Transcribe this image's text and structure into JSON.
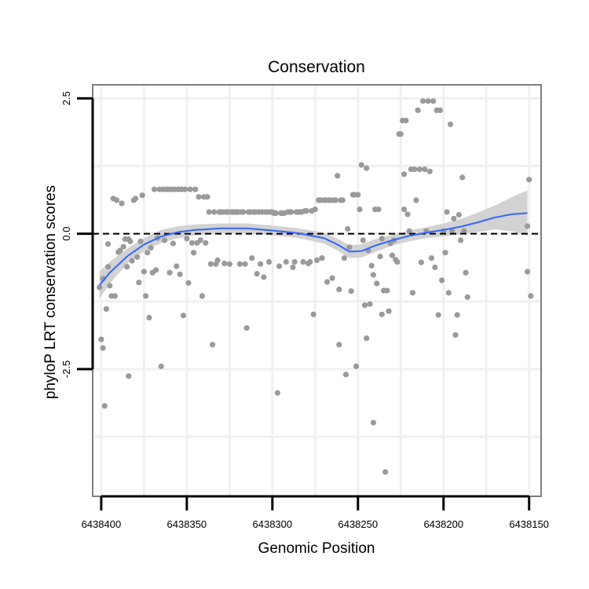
{
  "chart_data": {
    "type": "scatter",
    "title": "Conservation",
    "xlabel": "Genomic Position",
    "ylabel": "phyloP LRT conservation scores",
    "x_reversed": true,
    "xlim": [
      6438405,
      6438143
    ],
    "ylim": [
      -4.85,
      2.75
    ],
    "x_ticks": [
      6438400,
      6438350,
      6438300,
      6438250,
      6438200,
      6438150
    ],
    "x_tick_labels": [
      "6438400",
      "6438350",
      "6438300",
      "6438250",
      "6438200",
      "6438150"
    ],
    "y_ticks": [
      2.5,
      0.0,
      -2.5
    ],
    "y_tick_labels": [
      "2.5",
      "0.0",
      "-2.5"
    ],
    "reference_line": {
      "y": 0,
      "style": "dashed",
      "color": "#000000"
    },
    "colors": {
      "points": "#9a9a9a",
      "smooth": "#3366ff",
      "band": "#d2d2d2",
      "grid": "#f0f0f0",
      "border": "#7f7f7f"
    },
    "series": [
      {
        "name": "phyloP scores",
        "points": [
          [
            6438401,
            -0.99
          ],
          [
            6438400,
            -1.95
          ],
          [
            6438399,
            -0.83
          ],
          [
            6438399,
            -2.11
          ],
          [
            6438398,
            -3.18
          ],
          [
            6438397,
            -1.39
          ],
          [
            6438396,
            -0.61
          ],
          [
            6438396,
            -0.19
          ],
          [
            6438395,
            -0.96
          ],
          [
            6438394,
            -1.15
          ],
          [
            6438393,
            0.65
          ],
          [
            6438392,
            -1.15
          ],
          [
            6438391,
            0.62
          ],
          [
            6438390,
            -0.34
          ],
          [
            6438389,
            -0.31
          ],
          [
            6438388,
            0.56
          ],
          [
            6438387,
            -0.24
          ],
          [
            6438386,
            -0.1
          ],
          [
            6438385,
            -0.61
          ],
          [
            6438384,
            -0.1
          ],
          [
            6438384,
            -2.63
          ],
          [
            6438383,
            -0.14
          ],
          [
            6438382,
            -0.5
          ],
          [
            6438381,
            0.62
          ],
          [
            6438380,
            0.65
          ],
          [
            6438379,
            -0.43
          ],
          [
            6438378,
            -0.9
          ],
          [
            6438377,
            -0.14
          ],
          [
            6438376,
            0.71
          ],
          [
            6438375,
            -0.7
          ],
          [
            6438374,
            -1.15
          ],
          [
            6438373,
            -0.35
          ],
          [
            6438372,
            -1.55
          ],
          [
            6438371,
            -0.26
          ],
          [
            6438370,
            -0.72
          ],
          [
            6438369,
            0.82
          ],
          [
            6438368,
            -0.67
          ],
          [
            6438367,
            -0.08
          ],
          [
            6438366,
            0.82
          ],
          [
            6438365,
            -2.45
          ],
          [
            6438364,
            0.82
          ],
          [
            6438363,
            -0.12
          ],
          [
            6438362,
            0.82
          ],
          [
            6438361,
            0.82
          ],
          [
            6438360,
            -0.72
          ],
          [
            6438359,
            0.82
          ],
          [
            6438358,
            -0.18
          ],
          [
            6438357,
            0.82
          ],
          [
            6438356,
            -0.6
          ],
          [
            6438355,
            0.82
          ],
          [
            6438354,
            -0.75
          ],
          [
            6438353,
            0.82
          ],
          [
            6438352,
            -1.51
          ],
          [
            6438351,
            0.82
          ],
          [
            6438350,
            -0.09
          ],
          [
            6438349,
            -0.91
          ],
          [
            6438348,
            0.82
          ],
          [
            6438347,
            -0.17
          ],
          [
            6438346,
            -0.35
          ],
          [
            6438345,
            0.82
          ],
          [
            6438344,
            -0.17
          ],
          [
            6438343,
            0.68
          ],
          [
            6438342,
            -0.12
          ],
          [
            6438341,
            -1.15
          ],
          [
            6438340,
            0.68
          ],
          [
            6438339,
            -0.17
          ],
          [
            6438338,
            0.68
          ],
          [
            6438337,
            0.4
          ],
          [
            6438336,
            -0.56
          ],
          [
            6438335,
            -2.05
          ],
          [
            6438334,
            0.4
          ],
          [
            6438333,
            -0.56
          ],
          [
            6438332,
            -0.49
          ],
          [
            6438331,
            0.4
          ],
          [
            6438330,
            0.4
          ],
          [
            6438329,
            0.4
          ],
          [
            6438328,
            -0.55
          ],
          [
            6438327,
            0.4
          ],
          [
            6438326,
            0.4
          ],
          [
            6438325,
            -0.56
          ],
          [
            6438324,
            0.4
          ],
          [
            6438323,
            0.4
          ],
          [
            6438322,
            0.4
          ],
          [
            6438321,
            0.4
          ],
          [
            6438320,
            0.4
          ],
          [
            6438319,
            -0.56
          ],
          [
            6438318,
            0.4
          ],
          [
            6438317,
            0.4
          ],
          [
            6438316,
            -0.56
          ],
          [
            6438315,
            -1.74
          ],
          [
            6438314,
            0.4
          ],
          [
            6438313,
            0.4
          ],
          [
            6438312,
            -0.45
          ],
          [
            6438311,
            0.4
          ],
          [
            6438310,
            0.4
          ],
          [
            6438309,
            -0.74
          ],
          [
            6438308,
            0.4
          ],
          [
            6438307,
            -0.56
          ],
          [
            6438306,
            0.4
          ],
          [
            6438305,
            -0.8
          ],
          [
            6438304,
            0.4
          ],
          [
            6438303,
            0.4
          ],
          [
            6438302,
            -0.52
          ],
          [
            6438301,
            0.4
          ],
          [
            6438300,
            0.4
          ],
          [
            6438299,
            0.38
          ],
          [
            6438298,
            0.38
          ],
          [
            6438297,
            -2.94
          ],
          [
            6438296,
            -0.6
          ],
          [
            6438295,
            0.38
          ],
          [
            6438294,
            0.38
          ],
          [
            6438293,
            0.38
          ],
          [
            6438292,
            -0.52
          ],
          [
            6438291,
            0.4
          ],
          [
            6438290,
            0.4
          ],
          [
            6438289,
            0.4
          ],
          [
            6438288,
            -0.62
          ],
          [
            6438287,
            -0.52
          ],
          [
            6438286,
            0.4
          ],
          [
            6438285,
            0.4
          ],
          [
            6438284,
            0.4
          ],
          [
            6438283,
            0.4
          ],
          [
            6438282,
            -0.52
          ],
          [
            6438281,
            0.42
          ],
          [
            6438280,
            0.42
          ],
          [
            6438279,
            -0.55
          ],
          [
            6438278,
            -0.52
          ],
          [
            6438277,
            0.42
          ],
          [
            6438276,
            -1.49
          ],
          [
            6438275,
            0.45
          ],
          [
            6438274,
            -0.49
          ],
          [
            6438273,
            0.62
          ],
          [
            6438272,
            0.62
          ],
          [
            6438271,
            -0.45
          ],
          [
            6438270,
            0.62
          ],
          [
            6438269,
            0.62
          ],
          [
            6438268,
            -0.89
          ],
          [
            6438267,
            0.62
          ],
          [
            6438266,
            0.62
          ],
          [
            6438265,
            -0.82
          ],
          [
            6438264,
            0.62
          ],
          [
            6438263,
            0.62
          ],
          [
            6438262,
            1.07
          ],
          [
            6438261,
            -1.03
          ],
          [
            6438261,
            -2.05
          ],
          [
            6438260,
            0.62
          ],
          [
            6438259,
            0.62
          ],
          [
            6438258,
            -0.45
          ],
          [
            6438257,
            -2.6
          ],
          [
            6438256,
            0.09
          ],
          [
            6438255,
            -0.25
          ],
          [
            6438254,
            -1.06
          ],
          [
            6438253,
            0.72
          ],
          [
            6438252,
            0.72
          ],
          [
            6438251,
            -2.45
          ],
          [
            6438250,
            0.72
          ],
          [
            6438249,
            0.45
          ],
          [
            6438248,
            1.27
          ],
          [
            6438247,
            -0.12
          ],
          [
            6438246,
            -1.32
          ],
          [
            6438245,
            -1.93
          ],
          [
            6438245,
            1.21
          ],
          [
            6438244,
            -0.31
          ],
          [
            6438243,
            -1.3
          ],
          [
            6438242,
            -0.59
          ],
          [
            6438241,
            -3.49
          ],
          [
            6438241,
            -0.76
          ],
          [
            6438240,
            0.45
          ],
          [
            6438239,
            -0.92
          ],
          [
            6438238,
            0.45
          ],
          [
            6438237,
            -0.42
          ],
          [
            6438236,
            -0.09
          ],
          [
            6438236,
            -1.49
          ],
          [
            6438235,
            -1.05
          ],
          [
            6438234,
            -4.4
          ],
          [
            6438233,
            -1.05
          ],
          [
            6438232,
            -1.43
          ],
          [
            6438231,
            -0.18
          ],
          [
            6438230,
            -0.4
          ],
          [
            6438229,
            -0.12
          ],
          [
            6438228,
            -0.48
          ],
          [
            6438227,
            -0.52
          ],
          [
            6438226,
            1.84
          ],
          [
            6438225,
            1.84
          ],
          [
            6438224,
            2.09
          ],
          [
            6438223,
            1.1
          ],
          [
            6438223,
            0.45
          ],
          [
            6438222,
            2.09
          ],
          [
            6438221,
            0.36
          ],
          [
            6438220,
            0.05
          ],
          [
            6438219,
            1.19
          ],
          [
            6438218,
            -1.09
          ],
          [
            6438217,
            1.19
          ],
          [
            6438216,
            0.62
          ],
          [
            6438215,
            2.28
          ],
          [
            6438214,
            1.19
          ],
          [
            6438213,
            -0.53
          ],
          [
            6438212,
            2.45
          ],
          [
            6438211,
            1.19
          ],
          [
            6438210,
            0.05
          ],
          [
            6438209,
            2.45
          ],
          [
            6438208,
            1.15
          ],
          [
            6438207,
            -0.45
          ],
          [
            6438206,
            2.45
          ],
          [
            6438205,
            -0.62
          ],
          [
            6438204,
            2.28
          ],
          [
            6438203,
            -1.5
          ],
          [
            6438202,
            2.28
          ],
          [
            6438201,
            -0.86
          ],
          [
            6438200,
            0.05
          ],
          [
            6438199,
            -0.35
          ],
          [
            6438198,
            0.4
          ],
          [
            6438197,
            -1.09
          ],
          [
            6438196,
            2.02
          ],
          [
            6438195,
            0.05
          ],
          [
            6438194,
            0.28
          ],
          [
            6438193,
            -1.87
          ],
          [
            6438192,
            -1.5
          ],
          [
            6438191,
            0.35
          ],
          [
            6438190,
            -0.12
          ],
          [
            6438189,
            1.04
          ],
          [
            6438188,
            0.05
          ],
          [
            6438187,
            -0.72
          ],
          [
            6438186,
            -1.17
          ],
          [
            6438151,
            -0.7
          ],
          [
            6438151,
            0.14
          ],
          [
            6438150,
            1.0
          ],
          [
            6438149,
            -1.15
          ]
        ]
      }
    ],
    "smooth_curve": [
      [
        6438401,
        -0.95
      ],
      [
        6438395,
        -0.72
      ],
      [
        6438385,
        -0.42
      ],
      [
        6438375,
        -0.2
      ],
      [
        6438365,
        -0.05
      ],
      [
        6438355,
        0.03
      ],
      [
        6438345,
        0.07
      ],
      [
        6438330,
        0.1
      ],
      [
        6438315,
        0.1
      ],
      [
        6438300,
        0.06
      ],
      [
        6438285,
        0.01
      ],
      [
        6438270,
        -0.08
      ],
      [
        6438262,
        -0.2
      ],
      [
        6438255,
        -0.33
      ],
      [
        6438248,
        -0.32
      ],
      [
        6438240,
        -0.22
      ],
      [
        6438230,
        -0.12
      ],
      [
        6438220,
        -0.04
      ],
      [
        6438210,
        0.02
      ],
      [
        6438200,
        0.07
      ],
      [
        6438190,
        0.13
      ],
      [
        6438180,
        0.21
      ],
      [
        6438170,
        0.3
      ],
      [
        6438160,
        0.36
      ],
      [
        6438151,
        0.38
      ]
    ],
    "band_upper": [
      [
        6438401,
        -0.7
      ],
      [
        6438395,
        -0.52
      ],
      [
        6438385,
        -0.28
      ],
      [
        6438375,
        -0.08
      ],
      [
        6438365,
        0.07
      ],
      [
        6438355,
        0.14
      ],
      [
        6438345,
        0.17
      ],
      [
        6438330,
        0.19
      ],
      [
        6438315,
        0.19
      ],
      [
        6438300,
        0.15
      ],
      [
        6438285,
        0.1
      ],
      [
        6438270,
        0.02
      ],
      [
        6438262,
        -0.09
      ],
      [
        6438255,
        -0.21
      ],
      [
        6438248,
        -0.2
      ],
      [
        6438240,
        -0.1
      ],
      [
        6438230,
        -0.02
      ],
      [
        6438220,
        0.06
      ],
      [
        6438210,
        0.12
      ],
      [
        6438200,
        0.19
      ],
      [
        6438190,
        0.27
      ],
      [
        6438180,
        0.39
      ],
      [
        6438170,
        0.52
      ],
      [
        6438160,
        0.68
      ],
      [
        6438151,
        0.8
      ]
    ],
    "band_lower": [
      [
        6438401,
        -1.2
      ],
      [
        6438395,
        -0.92
      ],
      [
        6438385,
        -0.56
      ],
      [
        6438375,
        -0.32
      ],
      [
        6438365,
        -0.17
      ],
      [
        6438355,
        -0.08
      ],
      [
        6438345,
        -0.03
      ],
      [
        6438330,
        0.01
      ],
      [
        6438315,
        0.01
      ],
      [
        6438300,
        -0.03
      ],
      [
        6438285,
        -0.08
      ],
      [
        6438270,
        -0.18
      ],
      [
        6438262,
        -0.31
      ],
      [
        6438255,
        -0.45
      ],
      [
        6438248,
        -0.44
      ],
      [
        6438240,
        -0.34
      ],
      [
        6438230,
        -0.22
      ],
      [
        6438220,
        -0.14
      ],
      [
        6438210,
        -0.08
      ],
      [
        6438200,
        -0.05
      ],
      [
        6438190,
        -0.01
      ],
      [
        6438180,
        0.03
      ],
      [
        6438170,
        0.08
      ],
      [
        6438160,
        0.04
      ],
      [
        6438151,
        -0.04
      ]
    ]
  }
}
